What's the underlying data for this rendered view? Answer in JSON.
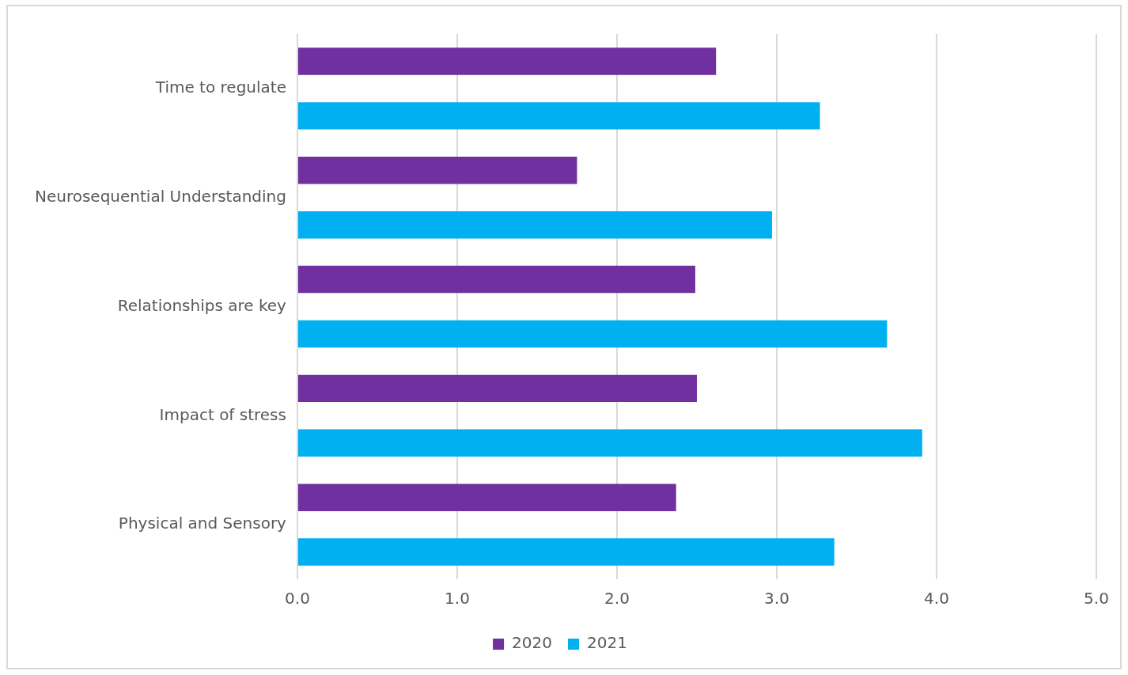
{
  "chart_data": {
    "type": "bar",
    "orientation": "horizontal",
    "categories": [
      "Time to regulate",
      "Neurosequential Understanding",
      "Relationships are key",
      "Impact of stress",
      "Physical and Sensory"
    ],
    "series": [
      {
        "name": "2020",
        "color": "#7030a0",
        "values": [
          2.62,
          1.75,
          2.49,
          2.5,
          2.37
        ]
      },
      {
        "name": "2021",
        "color": "#00b0f0",
        "values": [
          3.27,
          2.97,
          3.69,
          3.91,
          3.36
        ]
      }
    ],
    "xlim": [
      0,
      5
    ],
    "xticks": [
      {
        "value": 0,
        "label": "0.0"
      },
      {
        "value": 1,
        "label": "1.0"
      },
      {
        "value": 2,
        "label": "2.0"
      },
      {
        "value": 3,
        "label": "3.0"
      },
      {
        "value": 4,
        "label": "4.0"
      },
      {
        "value": 5,
        "label": "5.0"
      }
    ],
    "grid": "x",
    "legend": "bottom"
  }
}
